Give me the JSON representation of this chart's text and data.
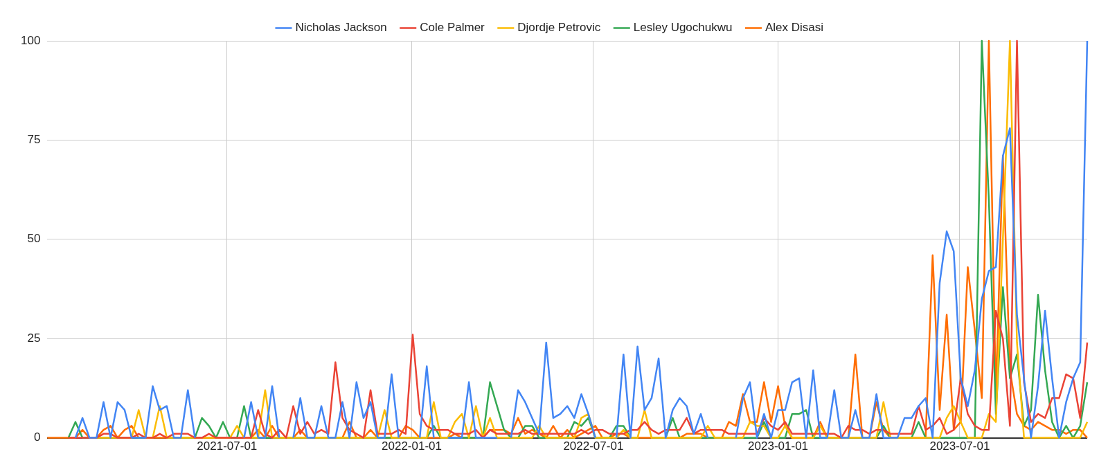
{
  "chart_data": {
    "type": "line",
    "x": [
      "2021-01-03",
      "2021-01-10",
      "2021-01-17",
      "2021-01-24",
      "2021-01-31",
      "2021-02-07",
      "2021-02-14",
      "2021-02-21",
      "2021-02-28",
      "2021-03-07",
      "2021-03-14",
      "2021-03-21",
      "2021-03-28",
      "2021-04-04",
      "2021-04-11",
      "2021-04-18",
      "2021-04-25",
      "2021-05-02",
      "2021-05-09",
      "2021-05-16",
      "2021-05-23",
      "2021-05-30",
      "2021-06-06",
      "2021-06-13",
      "2021-06-20",
      "2021-06-27",
      "2021-07-04",
      "2021-07-11",
      "2021-07-18",
      "2021-07-25",
      "2021-08-01",
      "2021-08-08",
      "2021-08-15",
      "2021-08-22",
      "2021-08-29",
      "2021-09-05",
      "2021-09-12",
      "2021-09-19",
      "2021-09-26",
      "2021-10-03",
      "2021-10-10",
      "2021-10-17",
      "2021-10-24",
      "2021-10-31",
      "2021-11-07",
      "2021-11-14",
      "2021-11-21",
      "2021-11-28",
      "2021-12-05",
      "2021-12-12",
      "2021-12-19",
      "2021-12-26",
      "2022-01-02",
      "2022-01-09",
      "2022-01-16",
      "2022-01-23",
      "2022-01-30",
      "2022-02-06",
      "2022-02-13",
      "2022-02-20",
      "2022-02-27",
      "2022-03-06",
      "2022-03-13",
      "2022-03-20",
      "2022-03-27",
      "2022-04-03",
      "2022-04-10",
      "2022-04-17",
      "2022-04-24",
      "2022-05-01",
      "2022-05-08",
      "2022-05-15",
      "2022-05-22",
      "2022-05-29",
      "2022-06-05",
      "2022-06-12",
      "2022-06-19",
      "2022-06-26",
      "2022-07-03",
      "2022-07-10",
      "2022-07-17",
      "2022-07-24",
      "2022-07-31",
      "2022-08-07",
      "2022-08-14",
      "2022-08-21",
      "2022-08-28",
      "2022-09-04",
      "2022-09-11",
      "2022-09-18",
      "2022-09-25",
      "2022-10-02",
      "2022-10-09",
      "2022-10-16",
      "2022-10-23",
      "2022-10-30",
      "2022-11-06",
      "2022-11-13",
      "2022-11-20",
      "2022-11-27",
      "2022-12-04",
      "2022-12-11",
      "2022-12-18",
      "2022-12-25",
      "2023-01-01",
      "2023-01-08",
      "2023-01-15",
      "2023-01-22",
      "2023-01-29",
      "2023-02-05",
      "2023-02-12",
      "2023-02-19",
      "2023-02-26",
      "2023-03-05",
      "2023-03-12",
      "2023-03-19",
      "2023-03-26",
      "2023-04-02",
      "2023-04-09",
      "2023-04-16",
      "2023-04-23",
      "2023-04-30",
      "2023-05-07",
      "2023-05-14",
      "2023-05-21",
      "2023-05-28",
      "2023-06-04",
      "2023-06-11",
      "2023-06-18",
      "2023-06-25",
      "2023-07-02",
      "2023-07-09",
      "2023-07-16",
      "2023-07-23",
      "2023-07-30",
      "2023-08-06",
      "2023-08-13",
      "2023-08-20",
      "2023-08-27",
      "2023-09-03",
      "2023-09-10",
      "2023-09-17",
      "2023-09-24",
      "2023-10-01",
      "2023-10-08",
      "2023-10-15",
      "2023-10-22",
      "2023-10-29",
      "2023-11-05"
    ],
    "series": [
      {
        "name": "Nicholas Jackson",
        "color": "#4285f4",
        "values": [
          null,
          null,
          null,
          null,
          0,
          5,
          0,
          0,
          9,
          0,
          9,
          7,
          0,
          0,
          0,
          13,
          7,
          8,
          0,
          0,
          12,
          0,
          null,
          null,
          null,
          null,
          null,
          null,
          0,
          9,
          0,
          0,
          13,
          0,
          null,
          0,
          10,
          0,
          0,
          8,
          0,
          0,
          9,
          0,
          14,
          5,
          9,
          0,
          0,
          16,
          0,
          null,
          null,
          0,
          18,
          0,
          null,
          0,
          0,
          0,
          14,
          0,
          0,
          0,
          0,
          null,
          0,
          12,
          9,
          5,
          1,
          24,
          5,
          6,
          8,
          5,
          11,
          6,
          0,
          null,
          null,
          0,
          21,
          0,
          23,
          7,
          10,
          20,
          0,
          7,
          10,
          8,
          1,
          6,
          0,
          null,
          null,
          null,
          0,
          10,
          14,
          0,
          6,
          0,
          7,
          7,
          14,
          15,
          0,
          17,
          0,
          0,
          12,
          0,
          0,
          7,
          0,
          0,
          11,
          0,
          0,
          0,
          5,
          5,
          8,
          10,
          0,
          39,
          52,
          47,
          15,
          8,
          17,
          35,
          42,
          43,
          71,
          78,
          31,
          15,
          0,
          13,
          32,
          15,
          0,
          9,
          15,
          19,
          100
        ]
      },
      {
        "name": "Cole Palmer",
        "color": "#ea4335",
        "values": [
          null,
          null,
          null,
          0,
          0,
          0,
          0,
          0,
          1,
          1,
          0,
          0,
          0,
          1,
          0,
          0,
          1,
          0,
          1,
          1,
          1,
          0,
          0,
          1,
          0,
          0,
          0,
          0,
          0,
          0,
          7,
          1,
          0,
          2,
          0,
          8,
          1,
          4,
          1,
          2,
          1,
          19,
          5,
          2,
          1,
          0,
          12,
          1,
          1,
          1,
          2,
          1,
          26,
          6,
          3,
          2,
          2,
          2,
          1,
          1,
          1,
          2,
          0,
          2,
          1,
          1,
          1,
          1,
          2,
          1,
          1,
          1,
          1,
          1,
          1,
          1,
          2,
          1,
          2,
          2,
          1,
          1,
          1,
          2,
          2,
          4,
          2,
          1,
          2,
          2,
          2,
          5,
          1,
          2,
          2,
          2,
          2,
          1,
          1,
          1,
          1,
          1,
          5,
          3,
          2,
          4,
          1,
          1,
          1,
          1,
          1,
          1,
          1,
          0,
          3,
          2,
          2,
          1,
          2,
          2,
          1,
          1,
          1,
          1,
          8,
          2,
          3,
          5,
          1,
          2,
          15,
          6,
          3,
          2,
          2,
          32,
          25,
          3,
          100,
          14,
          4,
          6,
          5,
          10,
          10,
          16,
          15,
          5,
          24
        ]
      },
      {
        "name": "Djordje Petrovic",
        "color": "#fbbc04",
        "values": [
          null,
          null,
          null,
          null,
          null,
          null,
          0,
          0,
          0,
          0,
          0,
          0,
          0,
          7,
          0,
          0,
          8,
          0,
          0,
          0,
          0,
          0,
          0,
          0,
          0,
          0,
          0,
          3,
          0,
          0,
          0,
          12,
          0,
          0,
          0,
          0,
          0,
          0,
          0,
          0,
          0,
          0,
          0,
          0,
          0,
          0,
          0,
          0,
          7,
          0,
          0,
          0,
          0,
          0,
          0,
          9,
          0,
          0,
          4,
          6,
          0,
          8,
          0,
          5,
          0,
          0,
          0,
          0,
          0,
          0,
          3,
          0,
          0,
          0,
          0,
          0,
          5,
          6,
          0,
          0,
          0,
          0,
          2,
          0,
          0,
          7,
          0,
          0,
          0,
          0,
          0,
          0,
          0,
          0,
          3,
          0,
          0,
          0,
          0,
          0,
          4,
          3,
          3,
          0,
          0,
          3,
          0,
          0,
          0,
          0,
          3,
          0,
          0,
          0,
          0,
          0,
          0,
          0,
          0,
          9,
          0,
          0,
          0,
          0,
          0,
          0,
          0,
          0,
          5,
          8,
          4,
          0,
          0,
          0,
          6,
          4,
          50,
          100,
          24,
          0,
          0,
          0,
          0,
          0,
          0,
          0,
          0,
          0,
          4
        ]
      },
      {
        "name": "Lesley Ugochukwu",
        "color": "#34a853",
        "values": [
          null,
          null,
          null,
          0,
          4,
          0,
          0,
          0,
          0,
          0,
          0,
          0,
          0,
          0,
          0,
          0,
          null,
          0,
          0,
          0,
          0,
          0,
          5,
          3,
          0,
          4,
          0,
          0,
          8,
          0,
          0,
          0,
          0,
          0,
          0,
          0,
          0,
          0,
          0,
          0,
          0,
          0,
          0,
          0,
          0,
          0,
          0,
          0,
          0,
          0,
          0,
          0,
          0,
          0,
          0,
          3,
          0,
          0,
          0,
          0,
          0,
          0,
          0,
          14,
          8,
          2,
          0,
          0,
          3,
          3,
          0,
          0,
          0,
          0,
          0,
          4,
          3,
          5,
          0,
          0,
          0,
          3,
          3,
          0,
          0,
          null,
          0,
          0,
          0,
          5,
          0,
          0,
          0,
          0,
          0,
          0,
          0,
          0,
          0,
          0,
          0,
          0,
          4,
          0,
          0,
          0,
          6,
          6,
          7,
          0,
          0,
          0,
          0,
          0,
          0,
          0,
          0,
          0,
          0,
          3,
          0,
          0,
          0,
          0,
          4,
          0,
          0,
          0,
          0,
          0,
          0,
          0,
          0,
          100,
          60,
          6,
          38,
          15,
          21,
          3,
          7,
          36,
          17,
          4,
          0,
          3,
          0,
          3,
          14
        ]
      },
      {
        "name": "Alex Disasi",
        "color": "#ff6d01",
        "values": [
          0,
          0,
          0,
          0,
          0,
          2,
          0,
          0,
          2,
          3,
          0,
          2,
          3,
          0,
          0,
          0,
          0,
          0,
          0,
          0,
          0,
          0,
          0,
          0,
          0,
          0,
          0,
          0,
          0,
          0,
          2,
          0,
          3,
          0,
          0,
          0,
          2,
          0,
          0,
          0,
          0,
          0,
          0,
          4,
          0,
          0,
          2,
          0,
          0,
          0,
          0,
          3,
          2,
          0,
          0,
          0,
          0,
          0,
          1,
          0,
          0,
          0,
          0,
          2,
          2,
          2,
          1,
          5,
          1,
          2,
          1,
          0,
          3,
          0,
          2,
          0,
          1,
          2,
          3,
          0,
          0,
          1,
          1,
          0,
          0,
          0,
          0,
          0,
          0,
          0,
          0,
          1,
          1,
          1,
          0,
          0,
          0,
          4,
          3,
          11,
          4,
          4,
          14,
          4,
          13,
          3,
          0,
          0,
          0,
          0,
          4,
          0,
          0,
          0,
          0,
          21,
          0,
          0,
          9,
          2,
          0,
          0,
          0,
          0,
          0,
          0,
          46,
          7,
          31,
          2,
          4,
          43,
          27,
          10,
          100,
          11,
          71,
          17,
          6,
          3,
          2,
          4,
          3,
          2,
          2,
          1,
          2,
          2,
          0
        ]
      }
    ],
    "xlim": [
      "2021-01-03",
      "2023-11-05"
    ],
    "xticks": [
      "2021-07-01",
      "2022-01-01",
      "2022-07-01",
      "2023-01-01",
      "2023-07-01"
    ],
    "ylim": [
      0,
      100
    ],
    "yticks": [
      0,
      25,
      50,
      75,
      100
    ],
    "grid": true,
    "legend": "top",
    "marker": "none",
    "line_style": "solid"
  }
}
